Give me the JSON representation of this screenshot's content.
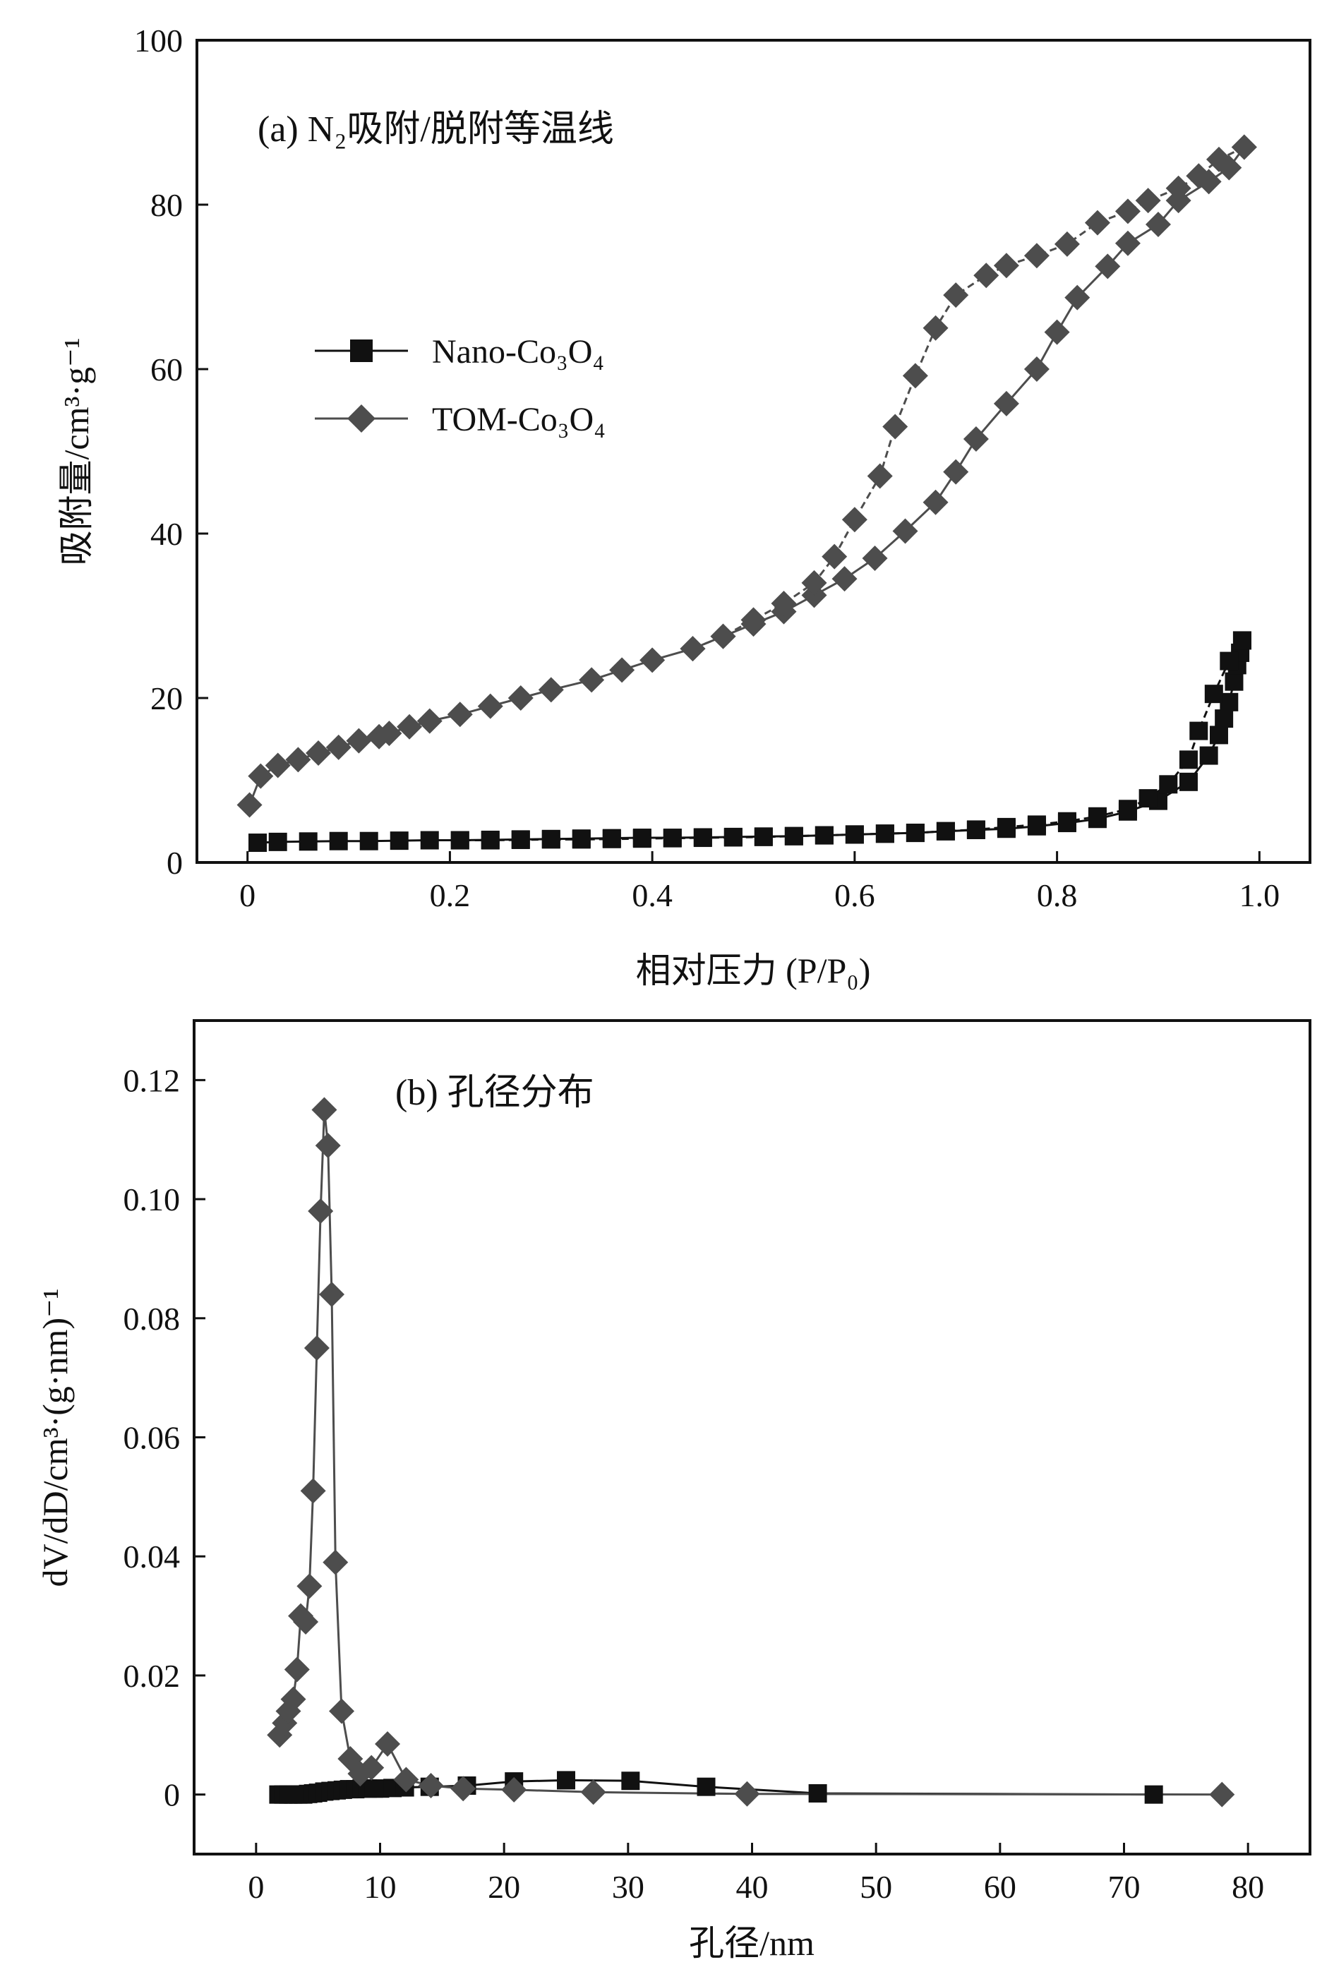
{
  "chart_data": [
    {
      "type": "scatter",
      "title": "(a) N₂吸附/脱附等温线",
      "xlabel": "相对压力 (P/P₀)",
      "ylabel": "吸附量/cm³·g⁻¹",
      "xlim": [
        -0.05,
        1.05
      ],
      "ylim": [
        0,
        100
      ],
      "xticks": [
        "0",
        "0.2",
        "0.4",
        "0.6",
        "0.8",
        "1.0"
      ],
      "xtick_values": [
        0,
        0.2,
        0.4,
        0.6,
        0.8,
        1.0
      ],
      "yticks": [
        "0",
        "20",
        "40",
        "60",
        "80",
        "100"
      ],
      "ytick_values": [
        0,
        20,
        40,
        60,
        80,
        100
      ],
      "legend_position": "center-left",
      "series": [
        {
          "name": "Nano-Co₃O₄",
          "marker": "square",
          "color": "#111111",
          "adsorption": [
            [
              0.01,
              2.4
            ],
            [
              0.03,
              2.5
            ],
            [
              0.06,
              2.55
            ],
            [
              0.09,
              2.6
            ],
            [
              0.12,
              2.6
            ],
            [
              0.15,
              2.65
            ],
            [
              0.18,
              2.7
            ],
            [
              0.21,
              2.7
            ],
            [
              0.24,
              2.75
            ],
            [
              0.27,
              2.8
            ],
            [
              0.3,
              2.85
            ],
            [
              0.33,
              2.9
            ],
            [
              0.36,
              2.95
            ],
            [
              0.39,
              3.0
            ],
            [
              0.42,
              3.0
            ],
            [
              0.45,
              3.05
            ],
            [
              0.48,
              3.1
            ],
            [
              0.51,
              3.15
            ],
            [
              0.54,
              3.2
            ],
            [
              0.57,
              3.3
            ],
            [
              0.6,
              3.4
            ],
            [
              0.63,
              3.5
            ],
            [
              0.66,
              3.6
            ],
            [
              0.69,
              3.8
            ],
            [
              0.72,
              3.95
            ],
            [
              0.75,
              4.1
            ],
            [
              0.78,
              4.4
            ],
            [
              0.81,
              4.8
            ],
            [
              0.84,
              5.3
            ],
            [
              0.87,
              6.2
            ],
            [
              0.9,
              7.5
            ],
            [
              0.93,
              9.8
            ],
            [
              0.95,
              13.0
            ],
            [
              0.96,
              15.5
            ],
            [
              0.965,
              17.5
            ],
            [
              0.97,
              19.5
            ],
            [
              0.975,
              22.0
            ],
            [
              0.978,
              24.0
            ],
            [
              0.981,
              25.5
            ],
            [
              0.983,
              27.0
            ]
          ],
          "desorption": [
            [
              0.983,
              27.0
            ],
            [
              0.97,
              24.5
            ],
            [
              0.955,
              20.5
            ],
            [
              0.94,
              16.0
            ],
            [
              0.93,
              12.5
            ],
            [
              0.91,
              9.5
            ],
            [
              0.89,
              7.8
            ],
            [
              0.87,
              6.5
            ],
            [
              0.84,
              5.6
            ],
            [
              0.81,
              5.0
            ],
            [
              0.78,
              4.6
            ],
            [
              0.75,
              4.3
            ],
            [
              0.72,
              4.0
            ],
            [
              0.69,
              3.8
            ],
            [
              0.66,
              3.6
            ],
            [
              0.63,
              3.5
            ],
            [
              0.6,
              3.4
            ],
            [
              0.57,
              3.3
            ],
            [
              0.54,
              3.2
            ],
            [
              0.51,
              3.1
            ],
            [
              0.48,
              3.05
            ],
            [
              0.45,
              3.0
            ],
            [
              0.42,
              2.95
            ],
            [
              0.39,
              2.9
            ],
            [
              0.36,
              2.85
            ],
            [
              0.33,
              2.8
            ],
            [
              0.3,
              2.8
            ],
            [
              0.27,
              2.75
            ],
            [
              0.24,
              2.7
            ],
            [
              0.21,
              2.7
            ]
          ]
        },
        {
          "name": "TOM-Co₃O₄",
          "marker": "diamond",
          "color": "#4d4d4d",
          "adsorption": [
            [
              0.002,
              7.0
            ],
            [
              0.013,
              10.5
            ],
            [
              0.03,
              11.8
            ],
            [
              0.05,
              12.5
            ],
            [
              0.07,
              13.3
            ],
            [
              0.09,
              14.0
            ],
            [
              0.11,
              14.8
            ],
            [
              0.13,
              15.3
            ],
            [
              0.14,
              15.7
            ],
            [
              0.16,
              16.5
            ],
            [
              0.18,
              17.2
            ],
            [
              0.21,
              18.0
            ],
            [
              0.24,
              19.0
            ],
            [
              0.27,
              20.0
            ],
            [
              0.3,
              21.0
            ],
            [
              0.34,
              22.2
            ],
            [
              0.37,
              23.4
            ],
            [
              0.4,
              24.6
            ],
            [
              0.44,
              26.0
            ],
            [
              0.47,
              27.5
            ],
            [
              0.5,
              29.0
            ],
            [
              0.53,
              30.5
            ],
            [
              0.56,
              32.5
            ],
            [
              0.59,
              34.5
            ],
            [
              0.62,
              37.0
            ],
            [
              0.65,
              40.3
            ],
            [
              0.68,
              43.8
            ],
            [
              0.7,
              47.5
            ],
            [
              0.72,
              51.5
            ],
            [
              0.75,
              55.8
            ],
            [
              0.78,
              60.0
            ],
            [
              0.8,
              64.5
            ],
            [
              0.82,
              68.7
            ],
            [
              0.85,
              72.5
            ],
            [
              0.87,
              75.3
            ],
            [
              0.9,
              77.6
            ],
            [
              0.92,
              80.5
            ],
            [
              0.95,
              82.8
            ],
            [
              0.97,
              84.5
            ],
            [
              0.985,
              87.0
            ]
          ],
          "desorption": [
            [
              0.985,
              87.0
            ],
            [
              0.96,
              85.5
            ],
            [
              0.94,
              83.5
            ],
            [
              0.92,
              82.0
            ],
            [
              0.89,
              80.5
            ],
            [
              0.87,
              79.2
            ],
            [
              0.84,
              77.8
            ],
            [
              0.81,
              75.2
            ],
            [
              0.78,
              73.8
            ],
            [
              0.75,
              72.6
            ],
            [
              0.73,
              71.4
            ],
            [
              0.7,
              69.0
            ],
            [
              0.68,
              65.0
            ],
            [
              0.66,
              59.2
            ],
            [
              0.64,
              53.0
            ],
            [
              0.625,
              47.0
            ],
            [
              0.6,
              41.7
            ],
            [
              0.58,
              37.2
            ],
            [
              0.56,
              34.0
            ],
            [
              0.53,
              31.5
            ],
            [
              0.5,
              29.5
            ],
            [
              0.47,
              27.5
            ],
            [
              0.44,
              26.0
            ]
          ]
        }
      ]
    },
    {
      "type": "scatter",
      "title": "(b) 孔径分布",
      "xlabel": "孔径/nm",
      "ylabel": "dV/dD/cm³·(g·nm)⁻¹",
      "xlim": [
        -5,
        85
      ],
      "ylim": [
        -0.01,
        0.13
      ],
      "xticks": [
        "0",
        "10",
        "20",
        "30",
        "40",
        "50",
        "60",
        "70",
        "80"
      ],
      "xtick_values": [
        0,
        10,
        20,
        30,
        40,
        50,
        60,
        70,
        80
      ],
      "yticks": [
        "0",
        "0.02",
        "0.04",
        "0.06",
        "0.08",
        "0.10",
        "0.12"
      ],
      "ytick_values": [
        0,
        0.02,
        0.04,
        0.06,
        0.08,
        0.1,
        0.12
      ],
      "series": [
        {
          "name": "Nano-Co₃O₄",
          "marker": "square",
          "color": "#111111",
          "points": [
            [
              1.8,
              0.0
            ],
            [
              2.2,
              0.0
            ],
            [
              2.6,
              0.0
            ],
            [
              3.0,
              0.0
            ],
            [
              3.4,
              0.0
            ],
            [
              3.8,
              0.0
            ],
            [
              4.2,
              0.0001
            ],
            [
              4.6,
              0.0002
            ],
            [
              5.0,
              0.0003
            ],
            [
              5.5,
              0.0005
            ],
            [
              6.0,
              0.0006
            ],
            [
              6.5,
              0.0007
            ],
            [
              7.0,
              0.0008
            ],
            [
              7.5,
              0.0009
            ],
            [
              8.0,
              0.0009
            ],
            [
              8.5,
              0.001
            ],
            [
              9.0,
              0.001
            ],
            [
              9.5,
              0.001
            ],
            [
              10.0,
              0.001
            ],
            [
              11.0,
              0.0011
            ],
            [
              12.0,
              0.0012
            ],
            [
              14.0,
              0.0013
            ],
            [
              17.0,
              0.0015
            ],
            [
              20.8,
              0.0022
            ],
            [
              25.0,
              0.0024
            ],
            [
              30.2,
              0.0023
            ],
            [
              36.3,
              0.0013
            ],
            [
              45.3,
              0.0002
            ],
            [
              72.4,
              0.0
            ]
          ]
        },
        {
          "name": "TOM-Co₃O₄",
          "marker": "diamond",
          "color": "#4d4d4d",
          "points": [
            [
              1.9,
              0.01
            ],
            [
              2.3,
              0.012
            ],
            [
              2.6,
              0.014
            ],
            [
              3.0,
              0.016
            ],
            [
              3.3,
              0.021
            ],
            [
              3.6,
              0.03
            ],
            [
              4.0,
              0.029
            ],
            [
              4.3,
              0.035
            ],
            [
              4.6,
              0.051
            ],
            [
              4.9,
              0.075
            ],
            [
              5.2,
              0.098
            ],
            [
              5.5,
              0.115
            ],
            [
              5.8,
              0.109
            ],
            [
              6.1,
              0.084
            ],
            [
              6.4,
              0.039
            ],
            [
              6.9,
              0.014
            ],
            [
              7.6,
              0.006
            ],
            [
              8.4,
              0.0035
            ],
            [
              9.3,
              0.0045
            ],
            [
              10.6,
              0.0085
            ],
            [
              12.1,
              0.0025
            ],
            [
              14.1,
              0.0015
            ],
            [
              16.7,
              0.001
            ],
            [
              20.8,
              0.0008
            ],
            [
              27.2,
              0.0004
            ],
            [
              39.6,
              0.0001
            ],
            [
              77.9,
              0.0
            ]
          ]
        }
      ]
    }
  ]
}
